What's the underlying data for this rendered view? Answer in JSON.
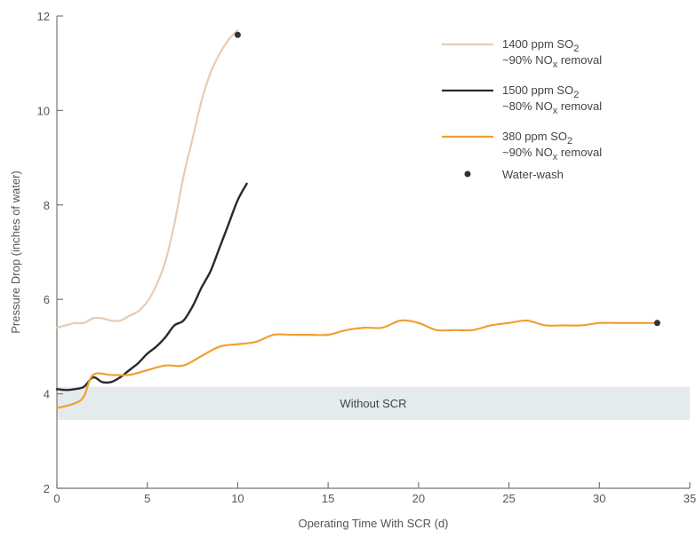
{
  "chart_data": {
    "type": "line",
    "title": "",
    "xlabel": "Operating Time With SCR (d)",
    "ylabel": "Pressure Drop (inches of water)",
    "xlim": [
      0,
      35
    ],
    "ylim": [
      2,
      12
    ],
    "x_ticks": [
      0,
      5,
      10,
      15,
      20,
      25,
      30,
      35
    ],
    "y_ticks": [
      2,
      4,
      6,
      8,
      10,
      12
    ],
    "grid": false,
    "legend_position": "top-right",
    "series": [
      {
        "name": "1400 ppm SO2 ~90% NOx removal",
        "legend_line1": "1400 ppm SO",
        "legend_line1_sub": "2",
        "legend_line2_pre": "~90% NO",
        "legend_line2_sub": "x",
        "legend_line2_post": " removal",
        "color": "#e8cbb0",
        "x": [
          0,
          0.5,
          1,
          1.5,
          2,
          2.5,
          3,
          3.5,
          4,
          4.5,
          5,
          5.5,
          6,
          6.5,
          7,
          7.5,
          8,
          8.5,
          9,
          9.5,
          10
        ],
        "y": [
          5.4,
          5.45,
          5.5,
          5.5,
          5.6,
          5.6,
          5.55,
          5.55,
          5.65,
          5.75,
          5.95,
          6.3,
          6.8,
          7.6,
          8.6,
          9.4,
          10.2,
          10.8,
          11.2,
          11.5,
          11.7
        ]
      },
      {
        "name": "1500 ppm SO2 ~80% NOx removal",
        "legend_line1": "1500 ppm SO",
        "legend_line1_sub": "2",
        "legend_line2_pre": "~80% NO",
        "legend_line2_sub": "x",
        "legend_line2_post": " removal",
        "color": "#2a2a2a",
        "x": [
          0,
          0.5,
          1,
          1.5,
          2,
          2.5,
          3,
          3.5,
          4,
          4.5,
          5,
          5.5,
          6,
          6.5,
          7,
          7.5,
          8,
          8.5,
          9,
          9.5,
          10,
          10.5
        ],
        "y": [
          4.1,
          4.08,
          4.1,
          4.15,
          4.35,
          4.25,
          4.25,
          4.35,
          4.5,
          4.65,
          4.85,
          5.0,
          5.2,
          5.45,
          5.55,
          5.85,
          6.25,
          6.6,
          7.1,
          7.6,
          8.1,
          8.45
        ]
      },
      {
        "name": "380 ppm SO2 ~90% NOx removal",
        "legend_line1": "380 ppm SO",
        "legend_line1_sub": "2",
        "legend_line2_pre": "~90% NO",
        "legend_line2_sub": "x",
        "legend_line2_post": " removal",
        "color": "#f0a030",
        "x": [
          0,
          1,
          1.5,
          2,
          3,
          4,
          5,
          6,
          7,
          8,
          9,
          10,
          11,
          12,
          13,
          14,
          15,
          16,
          17,
          18,
          19,
          20,
          21,
          22,
          23,
          24,
          25,
          26,
          27,
          28,
          29,
          30,
          31,
          32,
          33.2
        ],
        "y": [
          3.7,
          3.8,
          3.95,
          4.4,
          4.4,
          4.4,
          4.5,
          4.6,
          4.6,
          4.8,
          5.0,
          5.05,
          5.1,
          5.25,
          5.25,
          5.25,
          5.25,
          5.35,
          5.4,
          5.4,
          5.55,
          5.5,
          5.35,
          5.35,
          5.35,
          5.45,
          5.5,
          5.55,
          5.45,
          5.45,
          5.45,
          5.5,
          5.5,
          5.5,
          5.5
        ]
      }
    ],
    "markers": {
      "name": "Water-wash",
      "color": "#333333",
      "points": [
        {
          "x": 10,
          "y": 11.6
        },
        {
          "x": 33.2,
          "y": 5.5
        }
      ]
    },
    "band": {
      "label": "Without SCR",
      "y_range": [
        3.45,
        4.15
      ],
      "x_range": [
        0,
        35
      ],
      "color": "#e4ebec"
    }
  }
}
